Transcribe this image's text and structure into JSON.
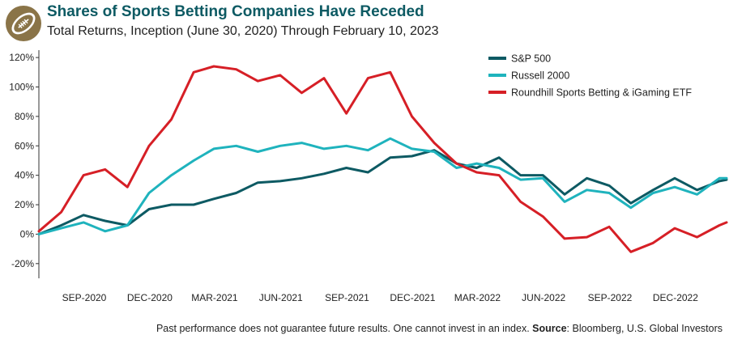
{
  "header": {
    "title": "Shares of Sports Betting Companies Have Receded",
    "subtitle": "Total Returns, Inception (June 30, 2020) Through February 10, 2023"
  },
  "logo": {
    "icon": "football-icon"
  },
  "footer": {
    "disclaimer": "Past performance does not guarantee future results. One cannot invest in an index.",
    "source_label": "Source",
    "source_text": ": Bloomberg, U.S. Global Investors"
  },
  "chart_data": {
    "type": "line",
    "title": "Shares of Sports Betting Companies Have Receded",
    "subtitle": "Total Returns, Inception (June 30, 2020) Through February 10, 2023",
    "ylim": [
      -30,
      125
    ],
    "y_ticks": [
      -20,
      0,
      20,
      40,
      60,
      80,
      100,
      120
    ],
    "y_tick_labels": [
      "-20%",
      "0%",
      "20%",
      "40%",
      "60%",
      "80%",
      "100%",
      "120%"
    ],
    "x_range": [
      "2020-06-30",
      "2023-02-10"
    ],
    "x_ticks": [
      "2020-09-01",
      "2020-12-01",
      "2021-03-01",
      "2021-06-01",
      "2021-09-01",
      "2021-12-01",
      "2022-03-01",
      "2022-06-01",
      "2022-09-01",
      "2022-12-01"
    ],
    "x_tick_labels": [
      "SEP-2020",
      "DEC-2020",
      "MAR-2021",
      "JUN-2021",
      "SEP-2021",
      "DEC-2021",
      "MAR-2022",
      "JUN-2022",
      "SEP-2022",
      "DEC-2022"
    ],
    "grid": false,
    "legend_position": "top-right",
    "series": [
      {
        "name": "S&P 500",
        "color": "#0d5a63",
        "x": [
          "2020-06-30",
          "2020-07-31",
          "2020-08-31",
          "2020-09-30",
          "2020-10-31",
          "2020-11-30",
          "2020-12-31",
          "2021-01-31",
          "2021-02-28",
          "2021-03-31",
          "2021-04-30",
          "2021-05-31",
          "2021-06-30",
          "2021-07-31",
          "2021-08-31",
          "2021-09-30",
          "2021-10-31",
          "2021-11-30",
          "2021-12-31",
          "2022-01-31",
          "2022-02-28",
          "2022-03-31",
          "2022-04-30",
          "2022-05-31",
          "2022-06-30",
          "2022-07-31",
          "2022-08-31",
          "2022-09-30",
          "2022-10-31",
          "2022-11-30",
          "2022-12-31",
          "2023-01-31",
          "2023-02-10"
        ],
        "values": [
          0,
          6,
          13,
          9,
          6,
          17,
          20,
          20,
          24,
          28,
          35,
          36,
          38,
          41,
          45,
          42,
          52,
          53,
          57,
          48,
          45,
          52,
          40,
          40,
          27,
          38,
          33,
          21,
          30,
          38,
          30,
          36,
          37
        ]
      },
      {
        "name": "Russell 2000",
        "color": "#1fb3bd",
        "x": [
          "2020-06-30",
          "2020-07-31",
          "2020-08-31",
          "2020-09-30",
          "2020-10-31",
          "2020-11-30",
          "2020-12-31",
          "2021-01-31",
          "2021-02-28",
          "2021-03-31",
          "2021-04-30",
          "2021-05-31",
          "2021-06-30",
          "2021-07-31",
          "2021-08-31",
          "2021-09-30",
          "2021-10-31",
          "2021-11-30",
          "2021-12-31",
          "2022-01-31",
          "2022-02-28",
          "2022-03-31",
          "2022-04-30",
          "2022-05-31",
          "2022-06-30",
          "2022-07-31",
          "2022-08-31",
          "2022-09-30",
          "2022-10-31",
          "2022-11-30",
          "2022-12-31",
          "2023-01-31",
          "2023-02-10"
        ],
        "values": [
          0,
          4,
          8,
          2,
          6,
          28,
          40,
          50,
          58,
          60,
          56,
          60,
          62,
          58,
          60,
          57,
          65,
          58,
          56,
          45,
          48,
          45,
          37,
          38,
          22,
          30,
          28,
          18,
          28,
          32,
          27,
          38,
          38
        ]
      },
      {
        "name": "Roundhill Sports Betting & iGaming ETF",
        "color": "#d61f26",
        "x": [
          "2020-06-30",
          "2020-07-31",
          "2020-08-31",
          "2020-09-30",
          "2020-10-31",
          "2020-11-30",
          "2020-12-31",
          "2021-01-31",
          "2021-02-28",
          "2021-03-31",
          "2021-04-30",
          "2021-05-31",
          "2021-06-30",
          "2021-07-31",
          "2021-08-31",
          "2021-09-30",
          "2021-10-31",
          "2021-11-30",
          "2021-12-31",
          "2022-01-31",
          "2022-02-28",
          "2022-03-31",
          "2022-04-30",
          "2022-05-31",
          "2022-06-30",
          "2022-07-31",
          "2022-08-31",
          "2022-09-30",
          "2022-10-31",
          "2022-11-30",
          "2022-12-31",
          "2023-01-31",
          "2023-02-10"
        ],
        "values": [
          2,
          15,
          40,
          44,
          32,
          60,
          78,
          110,
          114,
          112,
          104,
          108,
          96,
          106,
          82,
          106,
          110,
          80,
          62,
          48,
          42,
          40,
          22,
          12,
          -3,
          -2,
          5,
          -12,
          -6,
          4,
          -2,
          6,
          8
        ]
      }
    ]
  }
}
